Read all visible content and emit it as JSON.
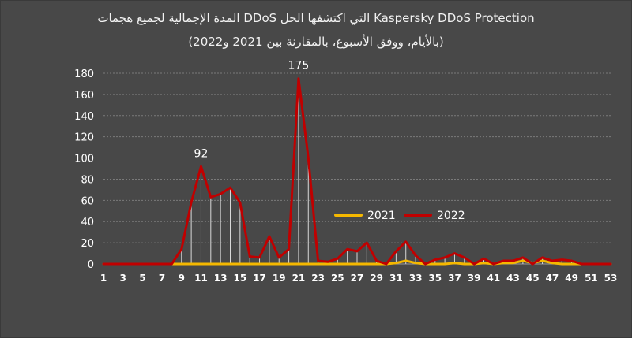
{
  "chart_data": {
    "type": "line",
    "title": "المدة الإجمالية لجميع هجمات DDoS التي اكتشفها الحل Kaspersky DDoS Protection",
    "subtitle": "(بالأيام، ووفق الأسبوع، بالمقارنة بين 2021 و2022)",
    "xlabel": "",
    "ylabel": "",
    "ylim": [
      0,
      180
    ],
    "yticks": [
      0,
      20,
      40,
      60,
      80,
      100,
      120,
      140,
      160,
      180
    ],
    "x": [
      1,
      2,
      3,
      4,
      5,
      6,
      7,
      8,
      9,
      10,
      11,
      12,
      13,
      14,
      15,
      16,
      17,
      18,
      19,
      20,
      21,
      22,
      23,
      24,
      25,
      26,
      27,
      28,
      29,
      30,
      31,
      32,
      33,
      34,
      35,
      36,
      37,
      38,
      39,
      40,
      41,
      42,
      43,
      44,
      45,
      46,
      47,
      48,
      49,
      50,
      51,
      52,
      53
    ],
    "x_tick_labels": [
      "1",
      "3",
      "5",
      "7",
      "9",
      "11",
      "13",
      "15",
      "17",
      "19",
      "21",
      "23",
      "25",
      "27",
      "29",
      "31",
      "33",
      "35",
      "37",
      "39",
      "41",
      "43",
      "45",
      "47",
      "49",
      "51",
      "53"
    ],
    "grid": "horizontal",
    "legend_position": "right",
    "series": [
      {
        "name": "2021",
        "color": "#f5b800",
        "values": [
          0,
          0,
          0,
          0,
          0,
          0,
          0,
          0,
          0,
          0,
          0,
          0,
          0,
          0,
          0,
          0,
          0,
          0,
          0,
          0,
          0,
          0,
          0,
          0,
          0,
          0,
          0,
          0,
          0,
          0,
          1,
          3,
          1,
          0,
          0,
          0,
          1,
          0,
          0,
          1,
          0,
          1,
          1,
          3,
          1,
          3,
          1,
          0,
          0,
          0,
          0,
          0,
          0
        ]
      },
      {
        "name": "2022",
        "color": "#c00000",
        "values": [
          0,
          0,
          0,
          0,
          0,
          0,
          0,
          0,
          14,
          58,
          92,
          63,
          66,
          72,
          58,
          7,
          6,
          26,
          6,
          14,
          175,
          100,
          3,
          2,
          5,
          14,
          12,
          20,
          3,
          0,
          12,
          21,
          8,
          0,
          4,
          6,
          10,
          6,
          0,
          5,
          0,
          3,
          3,
          6,
          0,
          6,
          3,
          4,
          3,
          0,
          0,
          0,
          0
        ]
      }
    ],
    "annotations": [
      {
        "x": 11,
        "y": 92,
        "text": "92"
      },
      {
        "x": 21,
        "y": 175,
        "text": "175"
      }
    ]
  }
}
